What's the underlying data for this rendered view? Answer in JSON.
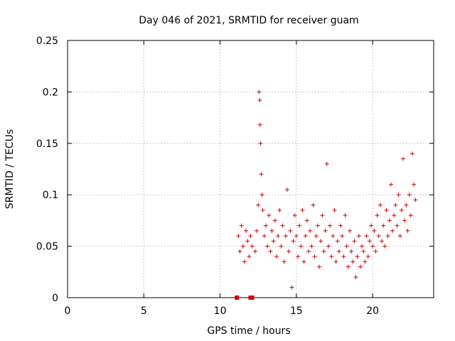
{
  "chart_data": {
    "type": "scatter",
    "title": "Day 046 of 2021, SRMTID for receiver guam",
    "xlabel": "GPS time / hours",
    "ylabel": "SRMTID / TECUs",
    "xlim": [
      0,
      24
    ],
    "ylim": [
      0,
      0.25
    ],
    "grid": true,
    "xticks": [
      0,
      5,
      10,
      15,
      20
    ],
    "xtick_labels": [
      "0",
      "5",
      "10",
      "15",
      "20"
    ],
    "yticks": [
      0,
      0.05,
      0.1,
      0.15,
      0.2,
      0.25
    ],
    "ytick_labels": [
      "0",
      "0.05",
      "0.1",
      "0.15",
      "0.2",
      "0.25"
    ],
    "marker_color": "#d40000",
    "series": [
      {
        "name": "SRMTID",
        "marker": "plus",
        "x": [
          11.2,
          11.3,
          11.4,
          11.5,
          11.6,
          11.7,
          11.8,
          11.9,
          12.0,
          12.1,
          12.3,
          12.4,
          12.5,
          12.55,
          12.6,
          12.62,
          12.65,
          12.7,
          12.75,
          12.8,
          12.9,
          13.0,
          13.1,
          13.2,
          13.3,
          13.4,
          13.5,
          13.6,
          13.7,
          13.8,
          13.9,
          14.0,
          14.1,
          14.2,
          14.3,
          14.4,
          14.5,
          14.6,
          14.7,
          14.8,
          14.9,
          15.0,
          15.1,
          15.2,
          15.3,
          15.4,
          15.5,
          15.6,
          15.7,
          15.8,
          15.9,
          16.0,
          16.1,
          16.2,
          16.3,
          16.4,
          16.5,
          16.6,
          16.7,
          16.8,
          16.9,
          17.0,
          17.1,
          17.2,
          17.3,
          17.4,
          17.5,
          17.6,
          17.7,
          17.8,
          17.9,
          18.0,
          18.1,
          18.2,
          18.3,
          18.4,
          18.5,
          18.6,
          18.7,
          18.8,
          18.9,
          19.0,
          19.1,
          19.2,
          19.3,
          19.4,
          19.5,
          19.6,
          19.7,
          19.8,
          19.9,
          20.0,
          20.1,
          20.2,
          20.3,
          20.4,
          20.5,
          20.6,
          20.7,
          20.8,
          20.9,
          21.0,
          21.1,
          21.2,
          21.3,
          21.4,
          21.5,
          21.6,
          21.7,
          21.8,
          21.9,
          22.0,
          22.1,
          22.2,
          22.3,
          22.4,
          22.5,
          22.6,
          22.7,
          22.8
        ],
        "y": [
          0.06,
          0.045,
          0.07,
          0.05,
          0.035,
          0.065,
          0.055,
          0.04,
          0.06,
          0.05,
          0.045,
          0.065,
          0.09,
          0.2,
          0.192,
          0.168,
          0.15,
          0.12,
          0.1,
          0.085,
          0.06,
          0.07,
          0.05,
          0.08,
          0.045,
          0.065,
          0.055,
          0.075,
          0.04,
          0.06,
          0.085,
          0.05,
          0.07,
          0.035,
          0.06,
          0.105,
          0.045,
          0.065,
          0.01,
          0.055,
          0.08,
          0.06,
          0.04,
          0.07,
          0.05,
          0.085,
          0.035,
          0.06,
          0.075,
          0.045,
          0.065,
          0.05,
          0.09,
          0.04,
          0.06,
          0.07,
          0.03,
          0.055,
          0.08,
          0.045,
          0.065,
          0.13,
          0.05,
          0.07,
          0.04,
          0.06,
          0.085,
          0.035,
          0.055,
          0.045,
          0.07,
          0.06,
          0.04,
          0.08,
          0.05,
          0.03,
          0.065,
          0.045,
          0.035,
          0.055,
          0.02,
          0.04,
          0.06,
          0.03,
          0.05,
          0.045,
          0.035,
          0.06,
          0.04,
          0.055,
          0.07,
          0.05,
          0.065,
          0.045,
          0.08,
          0.06,
          0.09,
          0.055,
          0.07,
          0.05,
          0.085,
          0.06,
          0.075,
          0.11,
          0.065,
          0.08,
          0.09,
          0.07,
          0.1,
          0.06,
          0.085,
          0.135,
          0.075,
          0.09,
          0.065,
          0.1,
          0.08,
          0.14,
          0.11,
          0.095
        ]
      },
      {
        "name": "data gap markers",
        "marker": "square",
        "x": [
          11.1,
          12.0,
          12.1
        ],
        "y": [
          0,
          0,
          0
        ]
      }
    ]
  }
}
